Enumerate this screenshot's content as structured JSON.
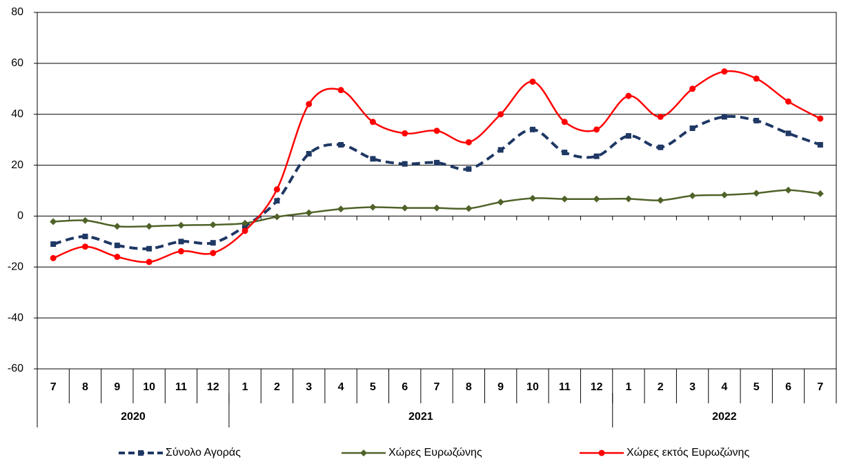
{
  "chart_data": {
    "type": "line",
    "categories": [
      "7",
      "8",
      "9",
      "10",
      "11",
      "12",
      "1",
      "2",
      "3",
      "4",
      "5",
      "6",
      "7",
      "8",
      "9",
      "10",
      "11",
      "12",
      "1",
      "2",
      "3",
      "4",
      "5",
      "6",
      "7"
    ],
    "years": [
      "2020",
      "2020",
      "2020",
      "2020",
      "2020",
      "2020",
      "2021",
      "2021",
      "2021",
      "2021",
      "2021",
      "2021",
      "2021",
      "2021",
      "2021",
      "2021",
      "2021",
      "2021",
      "2022",
      "2022",
      "2022",
      "2022",
      "2022",
      "2022",
      "2022"
    ],
    "series": [
      {
        "name": "Σύνολο Αγοράς",
        "color": "#1f3864",
        "marker": "square",
        "dashed": true,
        "values": [
          -11,
          -8,
          -11.5,
          -12.8,
          -10,
          -10.5,
          -4,
          6,
          24.5,
          28,
          22.5,
          20.5,
          21,
          18.5,
          26,
          34,
          25,
          23.5,
          31.5,
          27,
          34.5,
          39,
          37.5,
          32.5,
          28
        ]
      },
      {
        "name": "Χώρες Ευρωζώνης",
        "color": "#4f6228",
        "marker": "diamond",
        "dashed": false,
        "values": [
          -2.2,
          -1.7,
          -4,
          -4,
          -3.6,
          -3.4,
          -2.8,
          -0.3,
          1.3,
          2.8,
          3.5,
          3.2,
          3.2,
          3,
          5.5,
          7,
          6.7,
          6.7,
          6.8,
          6.2,
          8,
          8.3,
          9,
          10.2,
          8.8
        ]
      },
      {
        "name": "Χώρες εκτός Ευρωζώνης",
        "color": "#ff0000",
        "marker": "circle",
        "dashed": false,
        "values": [
          -16.5,
          -12,
          -16,
          -18,
          -13.8,
          -14.5,
          -5.8,
          10.5,
          44,
          49.5,
          37,
          32.5,
          33.5,
          29,
          40,
          52.8,
          37,
          34,
          47.2,
          39,
          50,
          56.8,
          54,
          45,
          38.3
        ]
      }
    ],
    "ylim": [
      -60,
      80
    ],
    "yticks": [
      -60,
      -40,
      -20,
      0,
      20,
      40,
      60,
      80
    ],
    "grid": true,
    "legend": "bottom"
  }
}
